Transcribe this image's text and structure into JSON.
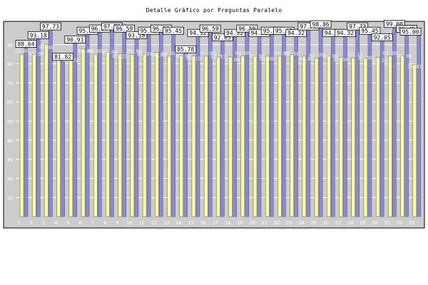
{
  "chart_data": {
    "type": "bar",
    "title": "Detalle Gráfico por Preguntas Paralelo",
    "xlabel": "",
    "ylabel": "",
    "ylim": [
      0,
      100
    ],
    "yticks": [
      10,
      20,
      30,
      40,
      50,
      60,
      70,
      80,
      90
    ],
    "categories": [
      "1",
      "2",
      "3",
      "4",
      "5",
      "6",
      "7",
      "8",
      "9",
      "10",
      "11",
      "12",
      "13",
      "14",
      "15",
      "16",
      "17",
      "18",
      "19",
      "20",
      "21",
      "22",
      "23",
      "24",
      "25",
      "26",
      "27",
      "28",
      "29",
      "30",
      "31",
      "32",
      "33"
    ],
    "series": [
      {
        "color": "#ffff99",
        "values": [
          85.0,
          85.0,
          90.0,
          81.82,
          81.73,
          88.0,
          85.0,
          86.0,
          85.21,
          85.0,
          85.04,
          86.0,
          84.0,
          84.0,
          84.19,
          84.0,
          83.57,
          83.6,
          84.0,
          83.97,
          84.0,
          84.0,
          85.0,
          84.0,
          83.06,
          84.0,
          83.5,
          83.14,
          83.0,
          83.29,
          84.0,
          84.0,
          79.81
        ]
      },
      {
        "color": "#8888dd",
        "values": [
          88.64,
          93.18,
          97.73,
          81.82,
          90.91,
          95.45,
          96.59,
          97.73,
          96.59,
          93.18,
          95.45,
          96.59,
          95.45,
          85.78,
          94.32,
          96.59,
          92.05,
          94.32,
          96.59,
          94.32,
          95.45,
          95.45,
          94.32,
          97.73,
          98.86,
          94.32,
          94.32,
          97.73,
          95.45,
          92.05,
          99.0,
          96.45,
          95.0
        ]
      }
    ]
  }
}
